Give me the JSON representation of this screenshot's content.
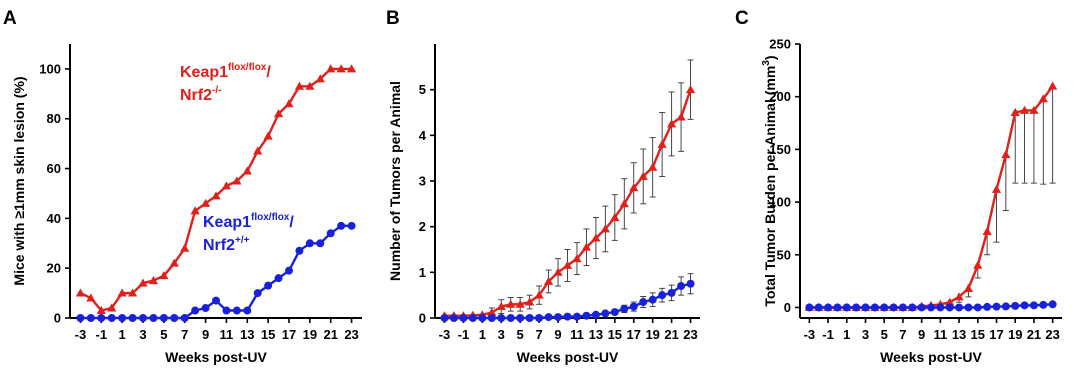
{
  "colors": {
    "red": "#e0201b",
    "blue": "#1a22d8",
    "axis": "#000000",
    "errorbar": "#333333"
  },
  "chart_data": [
    {
      "panel": "A",
      "type": "line",
      "xlabel": "Weeks post-UV",
      "ylabel": "Mice with ≥1mm skin lesion (%)",
      "ylim": [
        0,
        110
      ],
      "yticks": [
        0,
        20,
        40,
        60,
        80,
        100
      ],
      "xlim": [
        -4,
        24
      ],
      "xticks": [
        -3,
        -1,
        1,
        3,
        5,
        7,
        9,
        11,
        13,
        15,
        17,
        19,
        21,
        23
      ],
      "xtick_labels": [
        "-3",
        "-1",
        "1",
        "3",
        "5",
        "7",
        "9",
        "11",
        "13",
        "15",
        "17",
        "19",
        "21",
        "23"
      ],
      "series": [
        {
          "name_main": "Keap1",
          "name_sup1": "flox/flox",
          "name_mid": "/",
          "name_line2": "Nrf2",
          "name_sup2": "-/-",
          "color_key": "red",
          "marker": "triangle",
          "x": [
            -3,
            -2,
            -1,
            0,
            1,
            2,
            3,
            4,
            5,
            6,
            7,
            8,
            9,
            10,
            11,
            12,
            13,
            14,
            15,
            16,
            17,
            18,
            19,
            20,
            21,
            22,
            23
          ],
          "y": [
            10,
            8,
            3,
            4,
            10,
            10,
            14,
            15,
            17,
            22,
            28,
            43,
            46,
            49,
            53,
            55,
            59,
            67,
            73,
            82,
            86,
            93,
            93,
            96,
            100,
            100,
            100
          ]
        },
        {
          "name_main": "Keap1",
          "name_sup1": "flox/flox",
          "name_mid": "/",
          "name_line2": "Nrf2",
          "name_sup2": "+/+",
          "color_key": "blue",
          "marker": "circle",
          "x": [
            -3,
            -2,
            -1,
            0,
            1,
            2,
            3,
            4,
            5,
            6,
            7,
            8,
            9,
            10,
            11,
            12,
            13,
            14,
            15,
            16,
            17,
            18,
            19,
            20,
            21,
            22,
            23
          ],
          "y": [
            0,
            0,
            0,
            0,
            0,
            0,
            0,
            0,
            0,
            0,
            0,
            3,
            4,
            7,
            3,
            3,
            3,
            10,
            13,
            16,
            19,
            27,
            30,
            30,
            34,
            37,
            37
          ]
        }
      ]
    },
    {
      "panel": "B",
      "type": "line",
      "xlabel": "Weeks post-UV",
      "ylabel": "Number of Tumors per Animal",
      "ylim": [
        0,
        6
      ],
      "yticks": [
        0,
        1,
        2,
        3,
        4,
        5
      ],
      "xlim": [
        -4,
        24
      ],
      "xticks": [
        -3,
        -1,
        1,
        3,
        5,
        7,
        9,
        11,
        13,
        15,
        17,
        19,
        21,
        23
      ],
      "xtick_labels": [
        "-3",
        "-1",
        "1",
        "3",
        "5",
        "7",
        "9",
        "11",
        "13",
        "15",
        "17",
        "19",
        "21",
        "23"
      ],
      "series": [
        {
          "color_key": "red",
          "marker": "triangle",
          "x": [
            -3,
            -2,
            -1,
            0,
            1,
            2,
            3,
            4,
            5,
            6,
            7,
            8,
            9,
            10,
            11,
            12,
            13,
            14,
            15,
            16,
            17,
            18,
            19,
            20,
            21,
            22,
            23
          ],
          "y": [
            0.05,
            0.05,
            0.05,
            0.06,
            0.07,
            0.12,
            0.25,
            0.3,
            0.3,
            0.35,
            0.5,
            0.8,
            1.0,
            1.15,
            1.3,
            1.55,
            1.75,
            1.95,
            2.2,
            2.5,
            2.85,
            3.1,
            3.3,
            3.8,
            4.25,
            4.4,
            5.0
          ],
          "err": [
            0,
            0,
            0,
            0,
            0,
            0.1,
            0.15,
            0.15,
            0.15,
            0.15,
            0.2,
            0.25,
            0.3,
            0.35,
            0.35,
            0.4,
            0.45,
            0.5,
            0.5,
            0.55,
            0.55,
            0.6,
            0.65,
            0.7,
            0.7,
            0.75,
            0.65
          ]
        },
        {
          "color_key": "blue",
          "marker": "circle",
          "x": [
            -3,
            -2,
            -1,
            0,
            1,
            2,
            3,
            4,
            5,
            6,
            7,
            8,
            9,
            10,
            11,
            12,
            13,
            14,
            15,
            16,
            17,
            18,
            19,
            20,
            21,
            22,
            23
          ],
          "y": [
            0,
            0,
            0,
            0,
            0,
            0,
            0,
            0,
            0,
            0,
            0,
            0.02,
            0.02,
            0.03,
            0.03,
            0.05,
            0.07,
            0.1,
            0.13,
            0.2,
            0.25,
            0.35,
            0.4,
            0.5,
            0.55,
            0.7,
            0.75
          ],
          "err": [
            0,
            0,
            0,
            0,
            0,
            0,
            0,
            0,
            0,
            0,
            0,
            0,
            0,
            0,
            0,
            0,
            0,
            0,
            0.05,
            0.08,
            0.1,
            0.12,
            0.15,
            0.15,
            0.17,
            0.2,
            0.22
          ]
        }
      ]
    },
    {
      "panel": "C",
      "type": "line",
      "xlabel": "Weeks post-UV",
      "ylabel_main": "Total Tumor Burden per Animal (mm",
      "ylabel_sup": "3",
      "ylabel_end": ")",
      "ylim": [
        -10,
        250
      ],
      "yticks": [
        0,
        50,
        100,
        150,
        200,
        250
      ],
      "xlim": [
        -4,
        24
      ],
      "xticks": [
        -3,
        -1,
        1,
        3,
        5,
        7,
        9,
        11,
        13,
        15,
        17,
        19,
        21,
        23
      ],
      "xtick_labels": [
        "-3",
        "-1",
        "1",
        "3",
        "5",
        "7",
        "9",
        "11",
        "13",
        "15",
        "17",
        "19",
        "21",
        "23"
      ],
      "series": [
        {
          "color_key": "red",
          "marker": "triangle",
          "x": [
            -3,
            -2,
            -1,
            0,
            1,
            2,
            3,
            4,
            5,
            6,
            7,
            8,
            9,
            10,
            11,
            12,
            13,
            14,
            15,
            16,
            17,
            18,
            19,
            20,
            21,
            22,
            23
          ],
          "y": [
            0,
            0,
            0,
            0,
            0,
            0,
            0,
            0,
            0,
            0,
            0,
            0,
            1,
            2,
            3,
            5,
            10,
            18,
            40,
            72,
            112,
            145,
            185,
            187,
            187,
            198,
            210
          ],
          "err_low": [
            0,
            0,
            0,
            0,
            0,
            0,
            0,
            0,
            0,
            0,
            0,
            0,
            0,
            0,
            0,
            0,
            5,
            10,
            28,
            50,
            62,
            92,
            118,
            118,
            118,
            117,
            118
          ]
        },
        {
          "color_key": "blue",
          "marker": "circle",
          "x": [
            -3,
            -2,
            -1,
            0,
            1,
            2,
            3,
            4,
            5,
            6,
            7,
            8,
            9,
            10,
            11,
            12,
            13,
            14,
            15,
            16,
            17,
            18,
            19,
            20,
            21,
            22,
            23
          ],
          "y": [
            0,
            0,
            0,
            0,
            0,
            0,
            0,
            0,
            0,
            0,
            0,
            0,
            0,
            0,
            0,
            0,
            0,
            0,
            0,
            0.5,
            0.8,
            1,
            1.5,
            2,
            2,
            2.5,
            3
          ]
        }
      ]
    }
  ]
}
